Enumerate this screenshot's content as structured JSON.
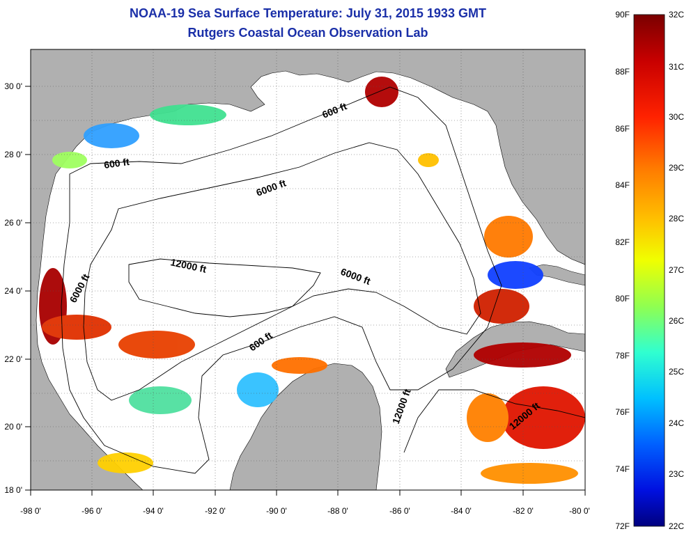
{
  "title": "NOAA-19 Sea Surface Temperature:  July 31, 2015 1933 GMT",
  "subtitle": "Rutgers Coastal Ocean Observation Lab",
  "map": {
    "x_ticks": [
      "-98 0'",
      "-96 0'",
      "-94 0'",
      "-92 0'",
      "-90 0'",
      "-88 0'",
      "-86 0'",
      "-84 0'",
      "-82 0'",
      "-80 0'"
    ],
    "y_ticks": [
      "30 0'",
      "28 0'",
      "26 0'",
      "24 0'",
      "22 0'",
      "20 0'",
      "18 0'"
    ],
    "x_range": [
      -98,
      -80
    ],
    "y_range": [
      18,
      31
    ],
    "grid": "dotted",
    "land_color": "#b0b0b0",
    "contour_labels": [
      "600 ft",
      "600 ft",
      "6000 ft",
      "12000 ft",
      "6000 ft",
      "6000 ft",
      "600 ft",
      "12000 ft",
      "12000 ft"
    ]
  },
  "colorbar": {
    "f_labels": [
      "90F",
      "88F",
      "86F",
      "84F",
      "82F",
      "80F",
      "78F",
      "76F",
      "74F",
      "72F"
    ],
    "c_labels": [
      "32C",
      "31C",
      "30C",
      "29C",
      "28C",
      "27C",
      "26C",
      "25C",
      "24C",
      "23C",
      "22C"
    ],
    "colors": [
      "#7a0000",
      "#c80000",
      "#ff2200",
      "#ff7a00",
      "#ffc000",
      "#f0ff00",
      "#90ff50",
      "#30ffd0",
      "#00c0ff",
      "#0060ff",
      "#0010e0",
      "#00007f"
    ]
  }
}
